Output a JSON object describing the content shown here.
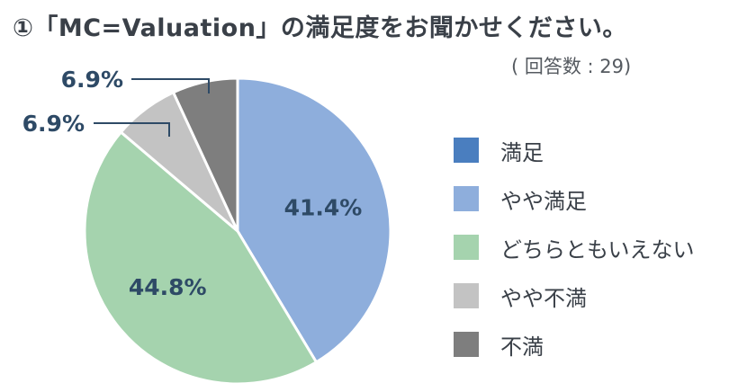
{
  "header": {
    "title": "①「MC=Valuation」の満足度をお聞かせください。",
    "subtitle": "( 回答数 : 29)"
  },
  "chart_data": {
    "type": "pie",
    "title": "①「MC=Valuation」の満足度をお聞かせください。",
    "subtitle": "( 回答数 : 29)",
    "categories": [
      "満足",
      "やや満足",
      "どちらともいえない",
      "やや不満",
      "不満"
    ],
    "values": [
      0,
      41.4,
      44.8,
      6.9,
      6.9
    ],
    "value_labels": [
      "",
      "41.4%",
      "44.8%",
      "6.9%",
      "6.9%"
    ],
    "colors": [
      "#4a7ebf",
      "#8eaedc",
      "#a5d3ae",
      "#c3c3c3",
      "#7e7e7e"
    ],
    "label_color": "#2e4a66",
    "start": "top",
    "direction": "clockwise",
    "legend_position": "right"
  }
}
